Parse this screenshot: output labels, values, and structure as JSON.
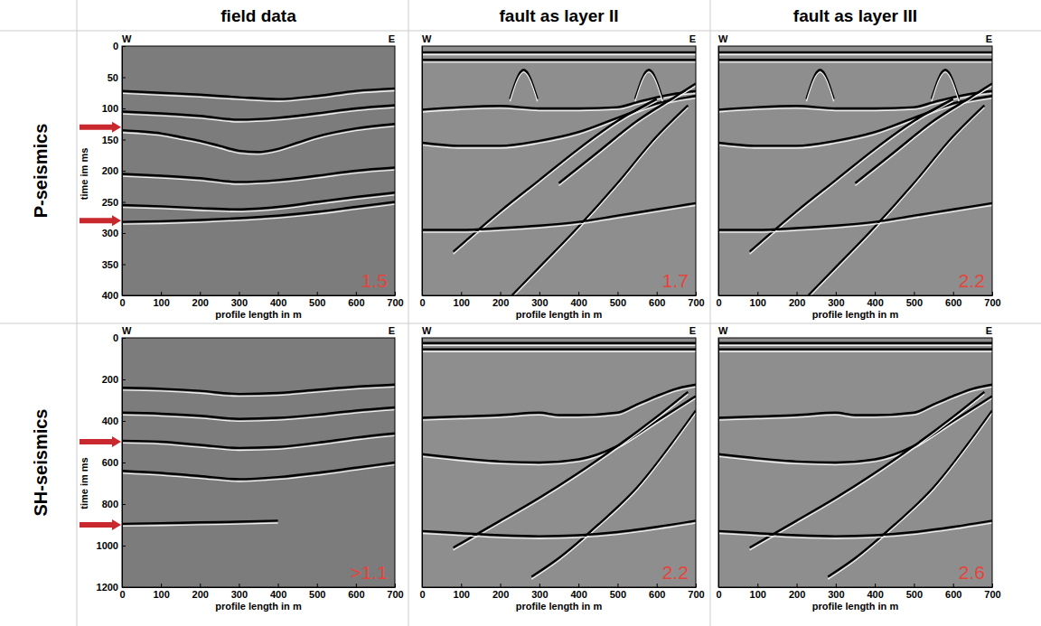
{
  "column_heads": [
    "field data",
    "fault as layer II",
    "fault as layer III"
  ],
  "row_heads": [
    "P-seismics",
    "SH-seismics"
  ],
  "chart_data": [
    {
      "type": "line",
      "end_labels": [
        "W",
        "E"
      ],
      "xlabel": "profile length in m",
      "ylabel": "time im ms",
      "xlim": [
        0,
        700
      ],
      "xticks": [
        0,
        100,
        200,
        300,
        400,
        500,
        600,
        700
      ],
      "ylim": [
        400,
        0
      ],
      "yticks": [
        0,
        50,
        100,
        150,
        200,
        250,
        300,
        350,
        400
      ],
      "annotation": {
        "value": 1.5,
        "label": "1.5",
        "color": "#e8433b"
      },
      "arrows": {
        "values": [
          130,
          280
        ],
        "color": "#c8282e"
      },
      "series": [
        {
          "color": "#000000",
          "x": [
            0,
            100,
            200,
            300,
            400,
            500,
            600,
            700
          ],
          "values": [
            72,
            75,
            78,
            82,
            85,
            80,
            72,
            68
          ]
        },
        {
          "color": "#000000",
          "x": [
            0,
            100,
            200,
            300,
            400,
            500,
            600,
            700
          ],
          "values": [
            105,
            108,
            112,
            118,
            115,
            108,
            100,
            95
          ]
        },
        {
          "color": "#000000",
          "x": [
            0,
            50,
            100,
            150,
            200,
            250,
            300,
            350,
            400,
            450,
            500,
            600,
            700
          ],
          "values": [
            135,
            137,
            140,
            146,
            152,
            160,
            168,
            170,
            165,
            155,
            145,
            132,
            125
          ]
        },
        {
          "color": "#000000",
          "x": [
            0,
            100,
            200,
            300,
            400,
            500,
            600,
            700
          ],
          "values": [
            205,
            208,
            212,
            218,
            215,
            208,
            200,
            195
          ]
        },
        {
          "color": "#000000",
          "x": [
            0,
            100,
            200,
            300,
            400,
            500,
            600,
            700
          ],
          "values": [
            255,
            257,
            260,
            262,
            258,
            250,
            242,
            235
          ]
        },
        {
          "color": "#000000",
          "x": [
            0,
            100,
            200,
            300,
            400,
            500,
            600,
            700
          ],
          "values": [
            282,
            281,
            279,
            276,
            272,
            266,
            258,
            250
          ]
        }
      ]
    },
    {
      "type": "line",
      "end_labels": [
        "W",
        "E"
      ],
      "xlabel": "profile length in m",
      "xlim": [
        0,
        700
      ],
      "xticks": [
        0,
        100,
        200,
        300,
        400,
        500,
        600,
        700
      ],
      "ylim": [
        400,
        0
      ],
      "tick_labels": "x",
      "annotation": {
        "value": 1.7,
        "label": "1.7",
        "color": "#e8433b"
      },
      "series": [
        {
          "color": "#000000",
          "x": [
            0,
            700
          ],
          "values": [
            10,
            10
          ]
        },
        {
          "color": "#000000",
          "x": [
            0,
            700
          ],
          "values": [
            22,
            22
          ]
        },
        {
          "color": "#000000",
          "x": [
            0,
            100,
            200,
            300,
            400,
            500,
            550,
            600,
            650,
            700
          ],
          "values": [
            102,
            98,
            96,
            100,
            100,
            98,
            90,
            82,
            76,
            72
          ]
        },
        {
          "color": "#000000",
          "x": [
            0,
            100,
            200,
            300,
            400,
            500,
            600,
            700
          ],
          "values": [
            155,
            160,
            160,
            152,
            138,
            115,
            92,
            80
          ]
        },
        {
          "color": "#000000",
          "x": [
            80,
            200,
            300,
            400,
            500,
            600
          ],
          "values": [
            330,
            265,
            215,
            165,
            120,
            85
          ]
        },
        {
          "color": "#000000",
          "x": [
            230,
            300,
            400,
            500,
            600,
            680
          ],
          "values": [
            400,
            355,
            290,
            220,
            145,
            95
          ]
        },
        {
          "color": "#000000",
          "x": [
            350,
            450,
            550,
            650,
            700
          ],
          "values": [
            220,
            170,
            120,
            80,
            60
          ]
        },
        {
          "color": "#000000",
          "x": [
            0,
            100,
            200,
            300,
            400,
            500,
            600,
            700
          ],
          "values": [
            295,
            295,
            292,
            288,
            282,
            272,
            262,
            252
          ]
        },
        {
          "color": "#000000",
          "x": [
            225,
            260,
            295
          ],
          "values": [
            85,
            38,
            85
          ]
        },
        {
          "color": "#000000",
          "x": [
            545,
            580,
            615
          ],
          "values": [
            85,
            38,
            85
          ]
        }
      ]
    },
    {
      "type": "line",
      "end_labels": [
        "W",
        "E"
      ],
      "xlabel": "profile length in m",
      "xlim": [
        0,
        700
      ],
      "xticks": [
        0,
        100,
        200,
        300,
        400,
        500,
        600,
        700
      ],
      "ylim": [
        400,
        0
      ],
      "tick_labels": "x",
      "annotation": {
        "value": 2.2,
        "label": "2.2",
        "color": "#e8433b"
      },
      "series": [
        {
          "color": "#000000",
          "x": [
            0,
            700
          ],
          "values": [
            10,
            10
          ]
        },
        {
          "color": "#000000",
          "x": [
            0,
            700
          ],
          "values": [
            22,
            22
          ]
        },
        {
          "color": "#000000",
          "x": [
            0,
            100,
            200,
            300,
            400,
            500,
            550,
            600,
            650,
            700
          ],
          "values": [
            102,
            98,
            96,
            100,
            100,
            98,
            90,
            82,
            76,
            72
          ]
        },
        {
          "color": "#000000",
          "x": [
            0,
            100,
            200,
            300,
            400,
            500,
            600,
            700
          ],
          "values": [
            155,
            160,
            160,
            152,
            138,
            115,
            92,
            80
          ]
        },
        {
          "color": "#000000",
          "x": [
            80,
            200,
            300,
            400,
            500,
            600
          ],
          "values": [
            330,
            265,
            215,
            165,
            120,
            85
          ]
        },
        {
          "color": "#000000",
          "x": [
            230,
            300,
            400,
            500,
            600,
            680
          ],
          "values": [
            400,
            355,
            290,
            220,
            145,
            95
          ]
        },
        {
          "color": "#000000",
          "x": [
            350,
            450,
            550,
            650,
            700
          ],
          "values": [
            220,
            170,
            120,
            80,
            60
          ]
        },
        {
          "color": "#000000",
          "x": [
            0,
            100,
            200,
            300,
            400,
            500,
            600,
            700
          ],
          "values": [
            295,
            295,
            292,
            288,
            282,
            272,
            262,
            252
          ]
        },
        {
          "color": "#000000",
          "x": [
            225,
            260,
            295
          ],
          "values": [
            85,
            38,
            85
          ]
        },
        {
          "color": "#000000",
          "x": [
            545,
            580,
            615
          ],
          "values": [
            85,
            38,
            85
          ]
        }
      ]
    },
    {
      "type": "line",
      "end_labels": [
        "W",
        "E"
      ],
      "xlabel": "profile length in m",
      "ylabel": "time im ms",
      "xlim": [
        0,
        700
      ],
      "xticks": [
        0,
        100,
        200,
        300,
        400,
        500,
        600,
        700
      ],
      "ylim": [
        1200,
        0
      ],
      "yticks": [
        0,
        200,
        400,
        600,
        800,
        1000,
        1200
      ],
      "annotation": {
        "value": 1.1,
        "label": ">1.1",
        "color": "#e8433b"
      },
      "arrows": {
        "values": [
          500,
          900
        ],
        "color": "#c8282e"
      },
      "series": [
        {
          "color": "#000000",
          "x": [
            0,
            100,
            200,
            300,
            400,
            500,
            600,
            700
          ],
          "values": [
            240,
            245,
            255,
            270,
            265,
            250,
            235,
            225
          ]
        },
        {
          "color": "#000000",
          "x": [
            0,
            100,
            200,
            300,
            400,
            500,
            600,
            700
          ],
          "values": [
            360,
            365,
            375,
            390,
            385,
            370,
            350,
            335
          ]
        },
        {
          "color": "#000000",
          "x": [
            0,
            100,
            200,
            300,
            400,
            500,
            600,
            700
          ],
          "values": [
            495,
            500,
            515,
            530,
            525,
            505,
            480,
            460
          ]
        },
        {
          "color": "#000000",
          "x": [
            0,
            100,
            200,
            300,
            400,
            500,
            600,
            700
          ],
          "values": [
            640,
            650,
            665,
            680,
            670,
            650,
            625,
            600
          ]
        },
        {
          "color": "#000000",
          "x": [
            0,
            100,
            200,
            300,
            400
          ],
          "values": [
            895,
            892,
            888,
            885,
            880
          ]
        }
      ]
    },
    {
      "type": "line",
      "end_labels": [
        "W",
        "E"
      ],
      "xlabel": "profile length in m",
      "xlim": [
        0,
        700
      ],
      "xticks": [
        0,
        100,
        200,
        300,
        400,
        500,
        600,
        700
      ],
      "ylim": [
        1200,
        0
      ],
      "tick_labels": "x",
      "annotation": {
        "value": 2.2,
        "label": "2.2",
        "color": "#e8433b"
      },
      "series": [
        {
          "color": "#000000",
          "x": [
            0,
            700
          ],
          "values": [
            25,
            25
          ]
        },
        {
          "color": "#000000",
          "x": [
            0,
            700
          ],
          "values": [
            55,
            55
          ]
        },
        {
          "color": "#000000",
          "x": [
            0,
            100,
            200,
            300,
            350,
            400,
            500,
            550,
            600,
            650,
            700
          ],
          "values": [
            385,
            378,
            372,
            360,
            372,
            372,
            360,
            320,
            280,
            245,
            225
          ]
        },
        {
          "color": "#000000",
          "x": [
            0,
            100,
            200,
            300,
            400,
            500,
            600,
            700
          ],
          "values": [
            560,
            580,
            595,
            600,
            585,
            520,
            400,
            280
          ]
        },
        {
          "color": "#000000",
          "x": [
            80,
            200,
            300,
            400,
            500,
            600,
            680
          ],
          "values": [
            1010,
            880,
            770,
            650,
            520,
            380,
            260
          ]
        },
        {
          "color": "#000000",
          "x": [
            280,
            350,
            450,
            550,
            650,
            700
          ],
          "values": [
            1150,
            1060,
            900,
            720,
            480,
            350
          ]
        },
        {
          "color": "#000000",
          "x": [
            0,
            100,
            200,
            300,
            400,
            500,
            600,
            700
          ],
          "values": [
            930,
            940,
            950,
            955,
            950,
            935,
            910,
            880
          ]
        }
      ]
    },
    {
      "type": "line",
      "end_labels": [
        "W",
        "E"
      ],
      "xlabel": "profile length in m",
      "xlim": [
        0,
        700
      ],
      "xticks": [
        0,
        100,
        200,
        300,
        400,
        500,
        600,
        700
      ],
      "ylim": [
        1200,
        0
      ],
      "tick_labels": "x",
      "annotation": {
        "value": 2.6,
        "label": "2.6",
        "color": "#e8433b"
      },
      "series": [
        {
          "color": "#000000",
          "x": [
            0,
            700
          ],
          "values": [
            25,
            25
          ]
        },
        {
          "color": "#000000",
          "x": [
            0,
            700
          ],
          "values": [
            55,
            55
          ]
        },
        {
          "color": "#000000",
          "x": [
            0,
            100,
            200,
            300,
            350,
            400,
            500,
            550,
            600,
            650,
            700
          ],
          "values": [
            385,
            378,
            372,
            360,
            372,
            372,
            360,
            320,
            280,
            245,
            225
          ]
        },
        {
          "color": "#000000",
          "x": [
            0,
            100,
            200,
            300,
            400,
            500,
            600,
            700
          ],
          "values": [
            560,
            580,
            595,
            600,
            585,
            520,
            400,
            280
          ]
        },
        {
          "color": "#000000",
          "x": [
            80,
            200,
            300,
            400,
            500,
            600,
            680
          ],
          "values": [
            1010,
            880,
            770,
            650,
            520,
            380,
            260
          ]
        },
        {
          "color": "#000000",
          "x": [
            280,
            350,
            450,
            550,
            650,
            700
          ],
          "values": [
            1150,
            1060,
            900,
            720,
            480,
            350
          ]
        },
        {
          "color": "#000000",
          "x": [
            0,
            100,
            200,
            300,
            400,
            500,
            600,
            700
          ],
          "values": [
            930,
            940,
            950,
            955,
            950,
            935,
            910,
            880
          ]
        }
      ]
    }
  ]
}
